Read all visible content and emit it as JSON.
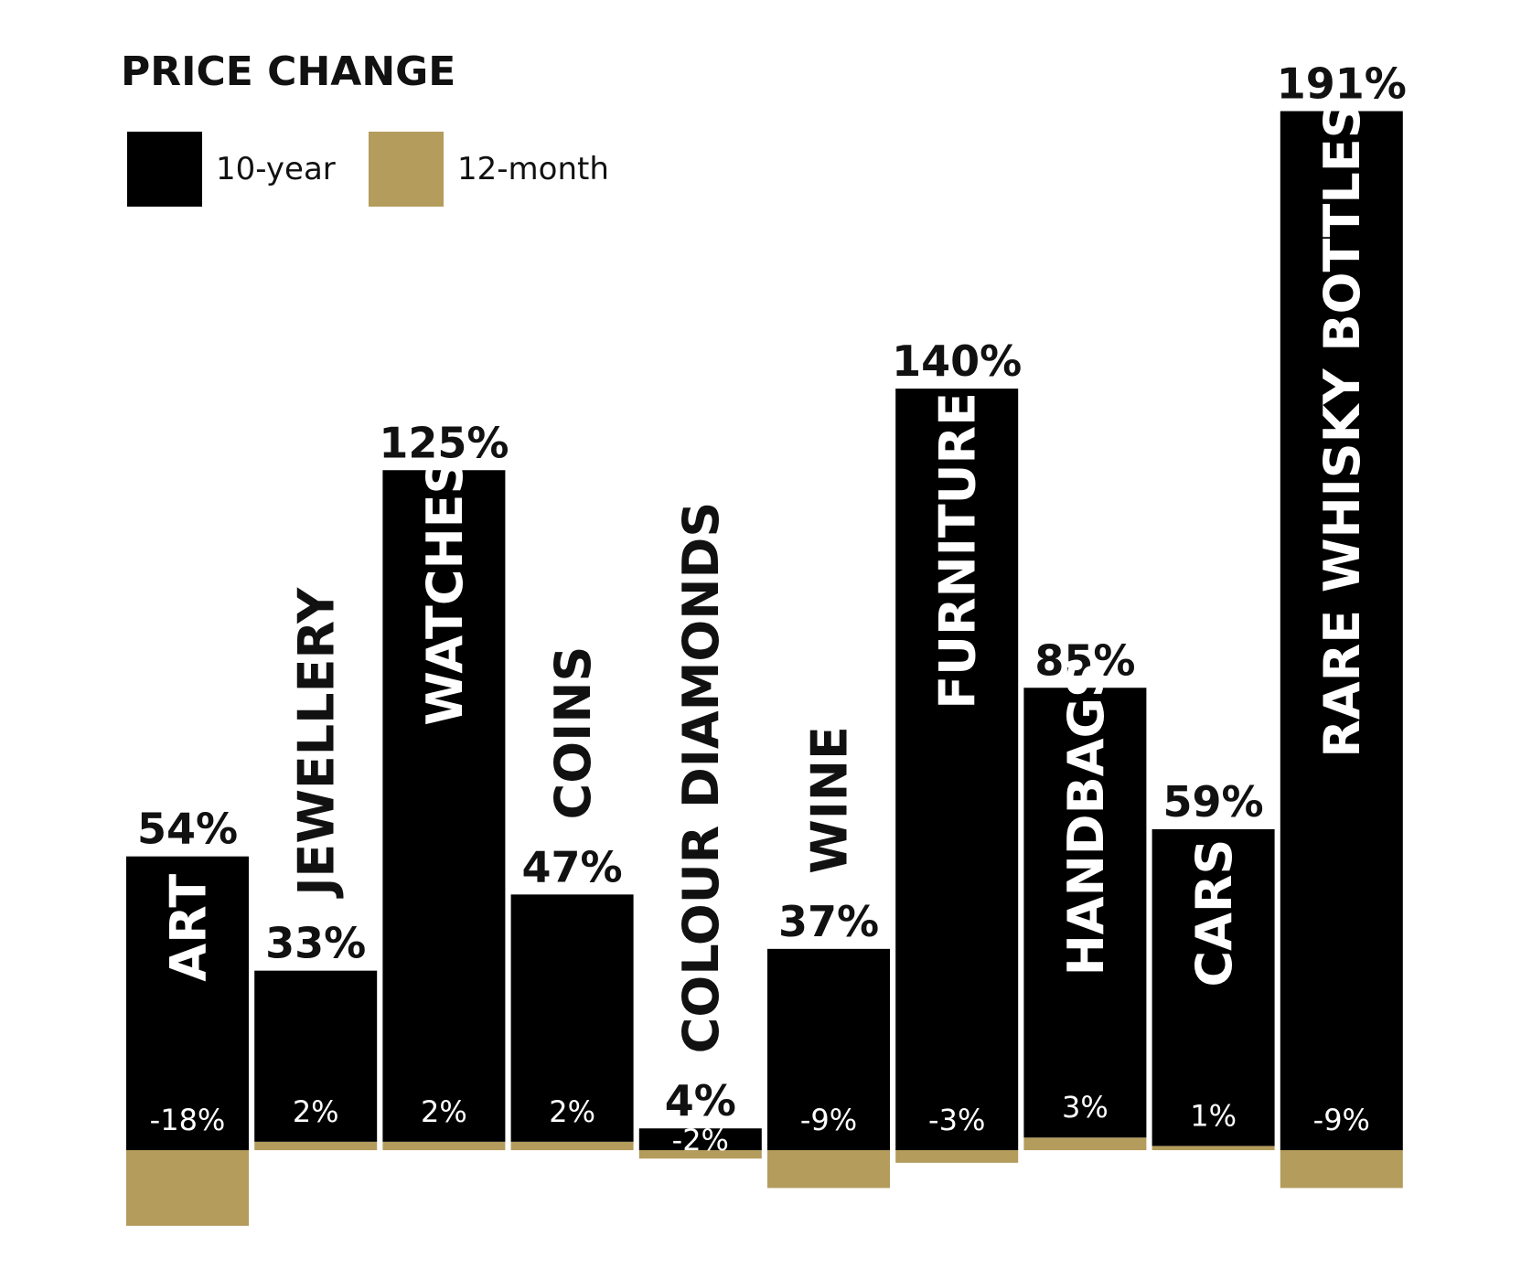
{
  "chart_data": {
    "type": "bar",
    "title": "PRICE CHANGE",
    "legend": {
      "placement": "top-left",
      "items": [
        {
          "name": "10-year",
          "color": "#000000"
        },
        {
          "name": "12-month",
          "color": "#b39c5c"
        }
      ]
    },
    "categories": [
      "ART",
      "JEWELLERY",
      "WATCHES",
      "COINS",
      "COLOUR DIAMONDS",
      "WINE",
      "FURNITURE",
      "HANDBAGS",
      "CARS",
      "RARE WHISKY BOTTLES"
    ],
    "series": [
      {
        "name": "10-year",
        "values": [
          54,
          33,
          125,
          47,
          4,
          37,
          140,
          85,
          59,
          191
        ],
        "labels": [
          "54%",
          "33%",
          "125%",
          "47%",
          "4%",
          "37%",
          "140%",
          "85%",
          "59%",
          "191%"
        ]
      },
      {
        "name": "12-month",
        "values": [
          -18,
          2,
          2,
          2,
          -2,
          -9,
          -3,
          3,
          1,
          -9
        ],
        "labels": [
          "-18%",
          "2%",
          "2%",
          "2%",
          "-2%",
          "-9%",
          "-3%",
          "3%",
          "1%",
          "-9%"
        ]
      }
    ],
    "grid": false,
    "xlabel": "",
    "ylabel": ""
  }
}
